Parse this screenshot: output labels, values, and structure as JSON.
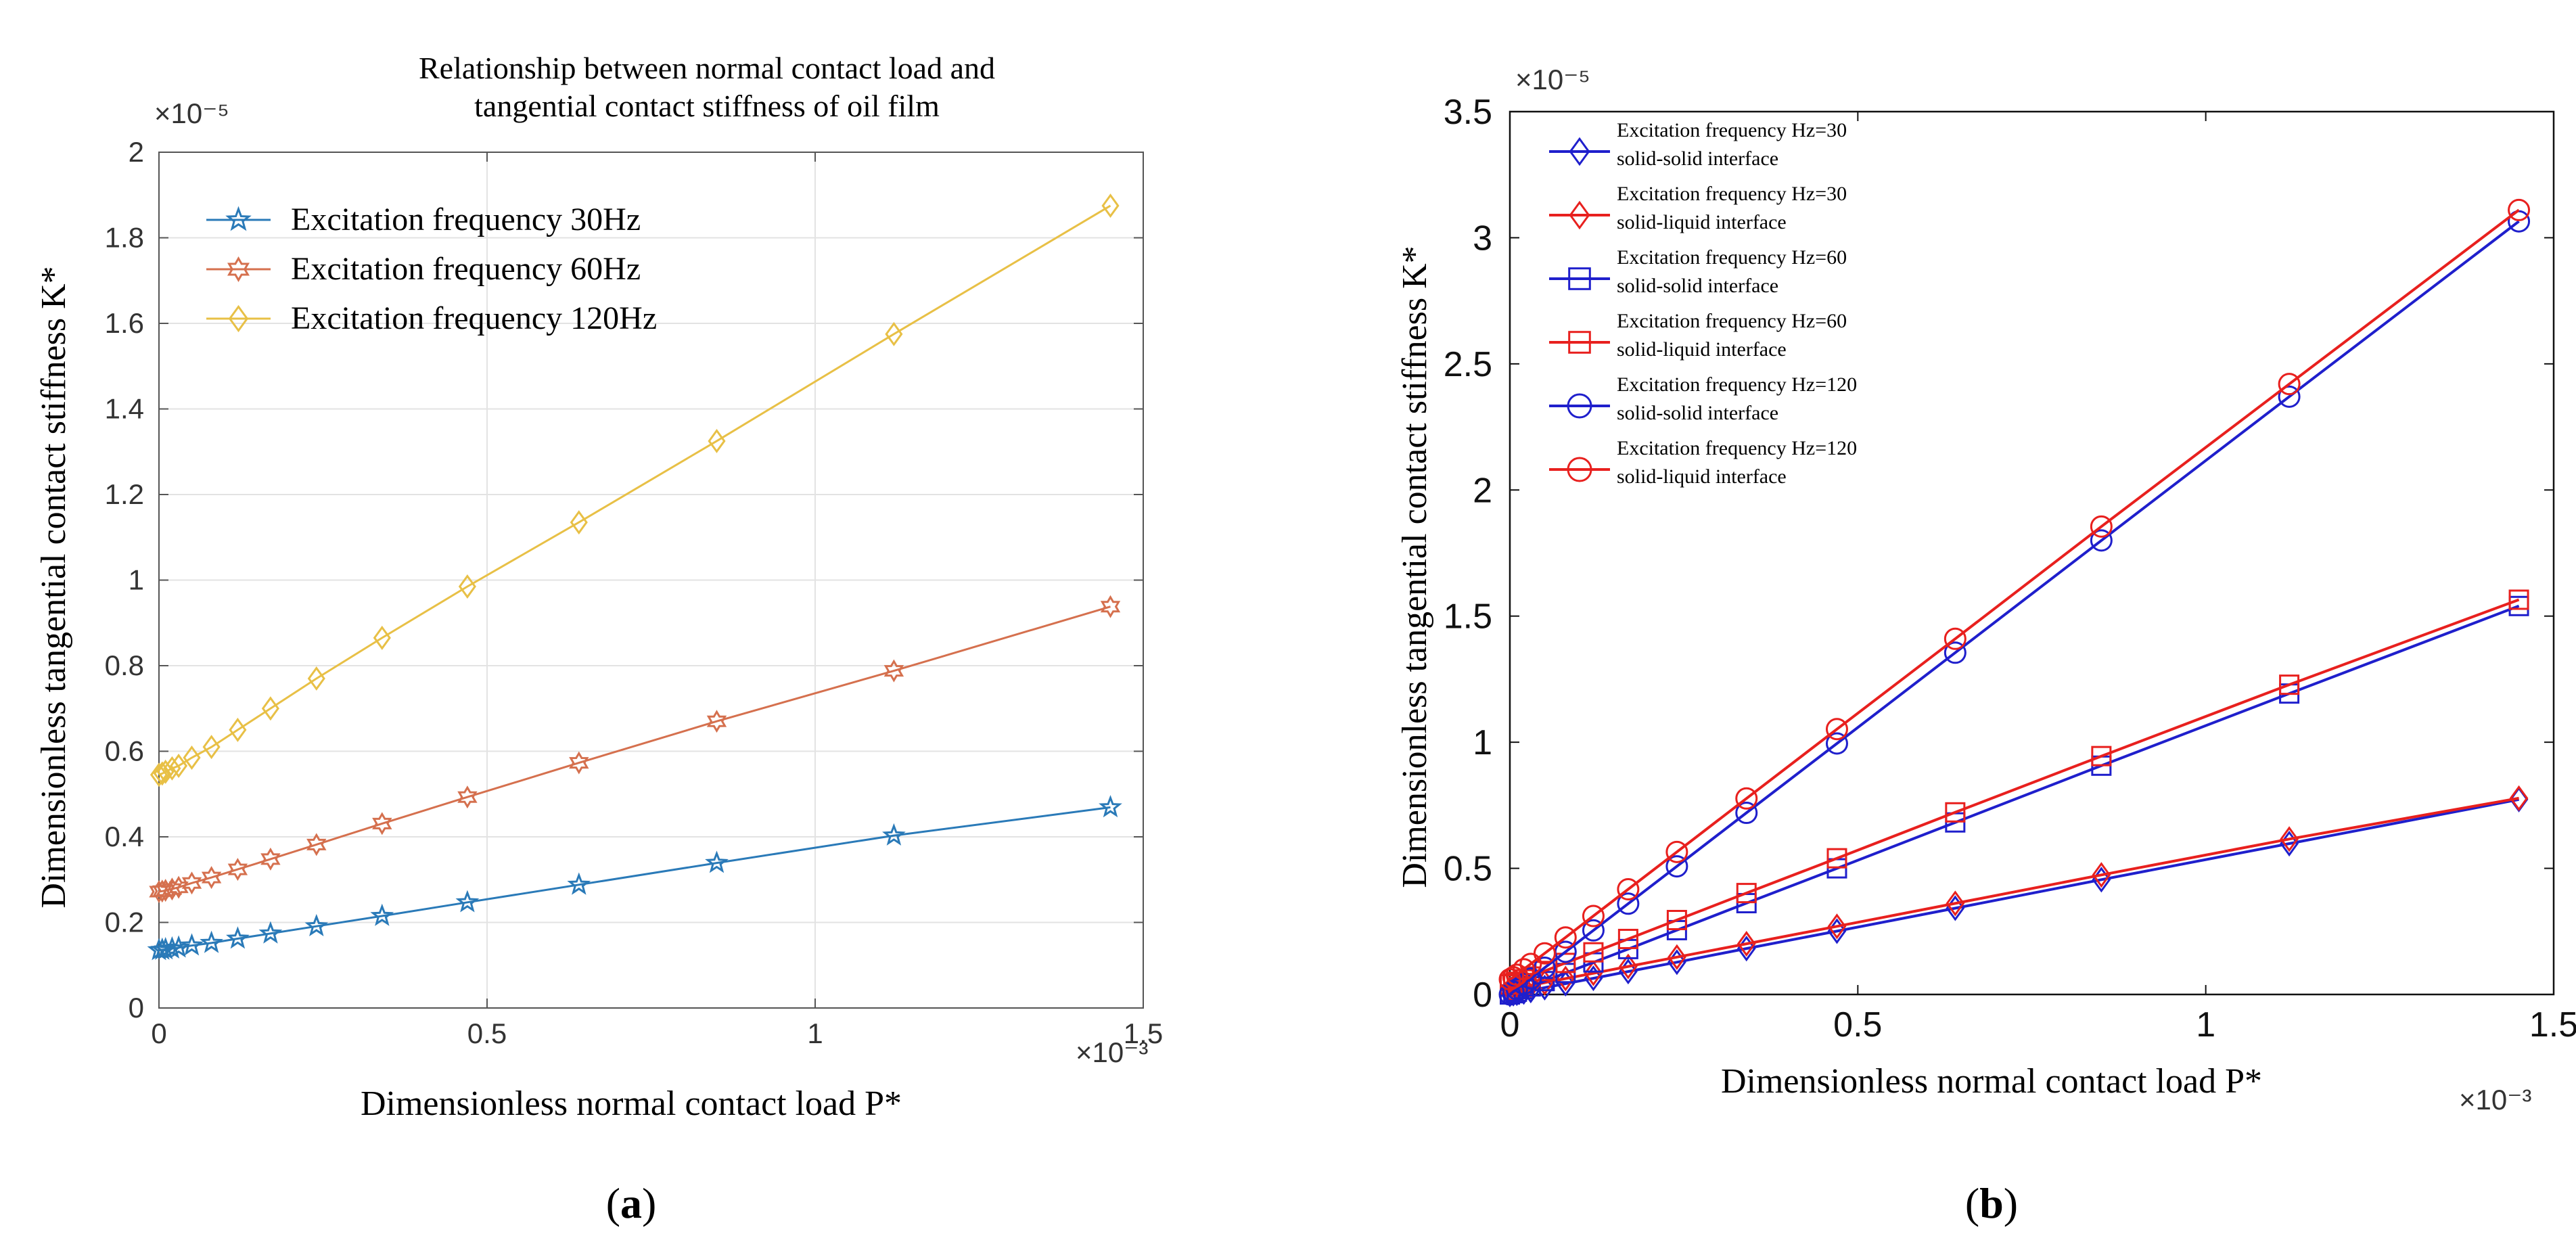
{
  "figure": {
    "panel_a_label": "(a)",
    "panel_b_label": "(b)"
  },
  "chart_data": [
    {
      "type": "line",
      "panel": "(a)",
      "title_line1": "Relationship between normal contact load and",
      "title_line2": "tangential contact stiffness of oil film",
      "xlabel": "Dimensionless normal contact load P*",
      "ylabel": "Dimensionless tangential contact stiffness K*",
      "x_exponent": "×10⁻³",
      "y_exponent": "×10⁻⁵",
      "xlim": [
        0,
        1.5
      ],
      "ylim": [
        0,
        2
      ],
      "xticks": [
        0,
        0.5,
        1,
        1.5
      ],
      "xtick_labels": [
        "0",
        "0.5",
        "1",
        "1.5"
      ],
      "yticks": [
        0,
        0.2,
        0.4,
        0.6,
        0.8,
        1.0,
        1.2,
        1.4,
        1.6,
        1.8,
        2.0
      ],
      "ytick_labels": [
        "0",
        "0.2",
        "0.4",
        "0.6",
        "0.8",
        "1",
        "1.2",
        "1.4",
        "1.6",
        "1.8",
        "2"
      ],
      "grid": true,
      "legend_position": "top-left",
      "x": [
        0.0,
        0.005,
        0.01,
        0.02,
        0.03,
        0.05,
        0.08,
        0.12,
        0.17,
        0.24,
        0.34,
        0.47,
        0.64,
        0.85,
        1.12,
        1.45
      ],
      "series": [
        {
          "name": "Excitation frequency 30Hz",
          "color": "#2a7ab8",
          "marker": "star",
          "values": [
            0.135,
            0.136,
            0.137,
            0.139,
            0.141,
            0.146,
            0.152,
            0.162,
            0.174,
            0.191,
            0.215,
            0.247,
            0.288,
            0.339,
            0.403,
            0.469
          ]
        },
        {
          "name": "Excitation frequency 60Hz",
          "color": "#d5704e",
          "marker": "hexagram",
          "values": [
            0.272,
            0.273,
            0.275,
            0.278,
            0.282,
            0.292,
            0.305,
            0.324,
            0.348,
            0.382,
            0.431,
            0.493,
            0.573,
            0.67,
            0.788,
            0.938
          ]
        },
        {
          "name": "Excitation frequency 120Hz",
          "color": "#e8c046",
          "marker": "diamond",
          "values": [
            0.545,
            0.548,
            0.552,
            0.56,
            0.566,
            0.585,
            0.61,
            0.65,
            0.7,
            0.77,
            0.865,
            0.985,
            1.135,
            1.325,
            1.575,
            1.875
          ]
        }
      ]
    },
    {
      "type": "line",
      "panel": "(b)",
      "xlabel": "Dimensionless normal contact load P*",
      "ylabel": "Dimensionless tangential contact stiffness K*",
      "x_exponent": "×10⁻³",
      "y_exponent": "×10⁻⁵",
      "xlim": [
        0,
        1.5
      ],
      "ylim": [
        0,
        3.5
      ],
      "xticks": [
        0,
        0.5,
        1,
        1.5
      ],
      "xtick_labels": [
        "0",
        "0.5",
        "1",
        "1.5"
      ],
      "yticks": [
        0,
        0.5,
        1,
        1.5,
        2,
        2.5,
        3,
        3.5
      ],
      "ytick_labels": [
        "0",
        "0.5",
        "1",
        "1.5",
        "2",
        "2.5",
        "3",
        "3.5"
      ],
      "grid": false,
      "legend_position": "top-left",
      "x": [
        0.0,
        0.005,
        0.01,
        0.02,
        0.03,
        0.05,
        0.08,
        0.12,
        0.17,
        0.24,
        0.34,
        0.47,
        0.64,
        0.85,
        1.12,
        1.45
      ],
      "series": [
        {
          "name_line1": "Excitation frequency Hz=30",
          "name_line2": "solid-solid interface",
          "color": "#1f1fcc",
          "marker": "diamond",
          "values": [
            0.0,
            0.003,
            0.005,
            0.01,
            0.016,
            0.027,
            0.043,
            0.064,
            0.091,
            0.128,
            0.182,
            0.251,
            0.342,
            0.455,
            0.598,
            0.773
          ]
        },
        {
          "name_line1": "Excitation frequency Hz=30",
          "name_line2": "solid-liquid interface",
          "color": "#e8201e",
          "marker": "diamond",
          "values": [
            0.02,
            0.022,
            0.025,
            0.03,
            0.036,
            0.047,
            0.063,
            0.084,
            0.111,
            0.148,
            0.201,
            0.27,
            0.361,
            0.474,
            0.616,
            0.778
          ]
        },
        {
          "name_line1": "Excitation frequency Hz=60",
          "name_line2": "solid-solid interface",
          "color": "#1f1fcc",
          "marker": "square",
          "values": [
            0.0,
            0.005,
            0.011,
            0.021,
            0.032,
            0.053,
            0.085,
            0.127,
            0.18,
            0.255,
            0.362,
            0.5,
            0.682,
            0.907,
            1.193,
            1.54
          ]
        },
        {
          "name_line1": "Excitation frequency Hz=60",
          "name_line2": "solid-liquid interface",
          "color": "#e8201e",
          "marker": "square",
          "values": [
            0.04,
            0.044,
            0.05,
            0.06,
            0.071,
            0.093,
            0.125,
            0.167,
            0.22,
            0.295,
            0.402,
            0.54,
            0.722,
            0.945,
            1.228,
            1.565
          ]
        },
        {
          "name_line1": "Excitation frequency Hz=120",
          "name_line2": "solid-solid interface",
          "color": "#1f1fcc",
          "marker": "circle",
          "values": [
            0.0,
            0.011,
            0.021,
            0.042,
            0.063,
            0.106,
            0.169,
            0.254,
            0.36,
            0.508,
            0.72,
            0.995,
            1.355,
            1.8,
            2.37,
            3.065
          ]
        },
        {
          "name_line1": "Excitation frequency Hz=120",
          "name_line2": "solid-liquid interface",
          "color": "#e8201e",
          "marker": "circle",
          "values": [
            0.06,
            0.068,
            0.078,
            0.1,
            0.121,
            0.163,
            0.226,
            0.311,
            0.417,
            0.565,
            0.777,
            1.052,
            1.41,
            1.855,
            2.42,
            3.11
          ]
        }
      ]
    }
  ]
}
